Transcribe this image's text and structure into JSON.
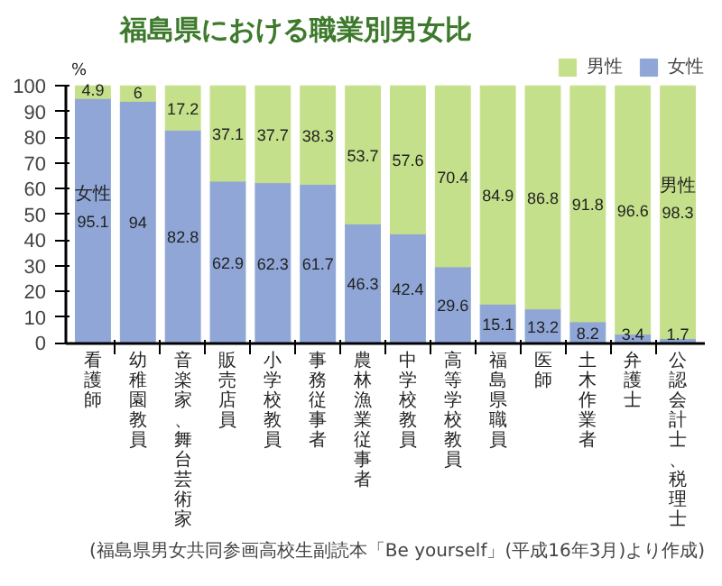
{
  "chart_data": {
    "type": "bar",
    "stacked": true,
    "title": "福島県における職業別男女比",
    "ylabel": "%",
    "categories": [
      "看護師",
      "幼稚園教員",
      "音楽家、舞台芸術家",
      "販売店員",
      "小学校教員",
      "事務従事者",
      "農林漁業従事者",
      "中学校教員",
      "高等学校教員",
      "福島県職員",
      "医師",
      "土木作業者",
      "弁護士",
      "公認会計士、税理士"
    ],
    "series": [
      {
        "name": "女性",
        "color": "#8fa6d6",
        "values": [
          95.1,
          94,
          82.8,
          62.9,
          62.3,
          61.7,
          46.3,
          42.4,
          29.6,
          15.1,
          13.2,
          8.2,
          3.4,
          1.7
        ]
      },
      {
        "name": "男性",
        "color": "#c5e08a",
        "values": [
          4.9,
          6,
          17.2,
          37.1,
          37.7,
          38.3,
          53.7,
          57.6,
          70.4,
          84.9,
          86.8,
          91.8,
          96.6,
          98.3
        ]
      }
    ],
    "ylim": [
      0,
      100
    ],
    "yticks": [
      0,
      10,
      20,
      30,
      40,
      50,
      60,
      70,
      80,
      90,
      100
    ],
    "data_labels": true,
    "legend": "top right",
    "grid": false,
    "annotations": [
      "(福島県男女共同参画高校生副読本「Be yourself」(平成16年3月)より作成)"
    ]
  }
}
